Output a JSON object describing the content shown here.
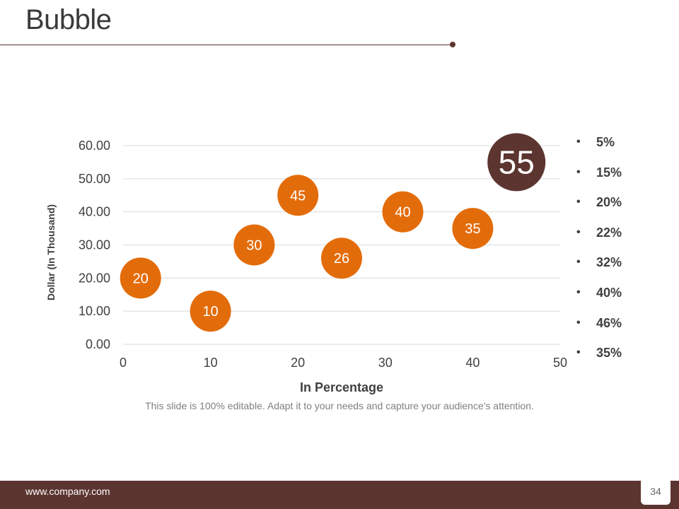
{
  "slide": {
    "title": "Bubble",
    "caption": "This slide is 100% editable. Adapt it to your needs and capture your audience's attention.",
    "footer_url": "www.company.com",
    "page_number": "34"
  },
  "colors": {
    "accent": "#e36c0a",
    "dark_bubble": "#5c3530",
    "footer": "#5c3530",
    "grid": "#d9d9d9",
    "axis_text": "#404040"
  },
  "legend": [
    "5%",
    "15%",
    "20%",
    "22%",
    "32%",
    "40%",
    "46%",
    "35%"
  ],
  "chart_data": {
    "type": "scatter",
    "subtype": "bubble",
    "title": "",
    "xlabel": "In Percentage",
    "ylabel": "Dollar (In Thousand)",
    "xlim": [
      0,
      50
    ],
    "ylim": [
      0,
      60
    ],
    "x_ticks": [
      "0",
      "10",
      "20",
      "30",
      "40",
      "50"
    ],
    "y_ticks": [
      "0.00",
      "10.00",
      "20.00",
      "30.00",
      "40.00",
      "50.00",
      "60.00"
    ],
    "grid": true,
    "points": [
      {
        "x": 2,
        "y": 20,
        "label": "20",
        "highlight": false
      },
      {
        "x": 10,
        "y": 10,
        "label": "10",
        "highlight": false
      },
      {
        "x": 15,
        "y": 30,
        "label": "30",
        "highlight": false
      },
      {
        "x": 20,
        "y": 45,
        "label": "45",
        "highlight": false
      },
      {
        "x": 25,
        "y": 26,
        "label": "26",
        "highlight": false
      },
      {
        "x": 32,
        "y": 40,
        "label": "40",
        "highlight": false
      },
      {
        "x": 40,
        "y": 35,
        "label": "35",
        "highlight": false
      },
      {
        "x": 45,
        "y": 55,
        "label": "55",
        "highlight": true
      }
    ]
  }
}
